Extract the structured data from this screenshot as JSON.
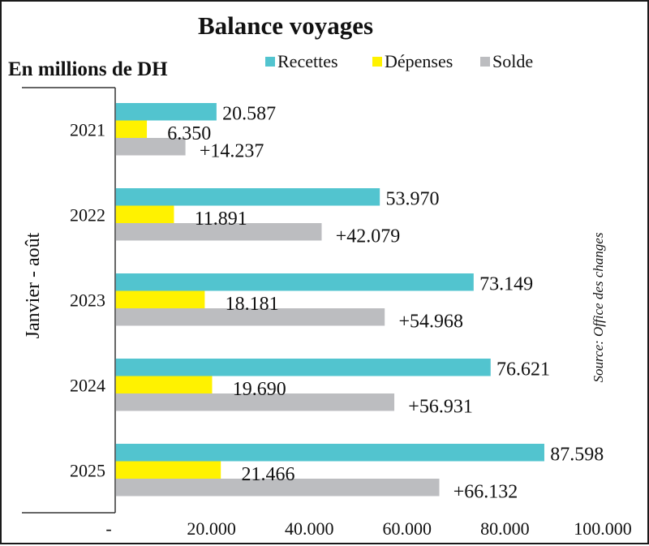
{
  "chart_data": {
    "type": "bar",
    "orientation": "horizontal",
    "title": "Balance voyages",
    "subtitle": "En millions de DH",
    "ylabel": "Janvier - août",
    "xlabel": "",
    "source": "Source: Office des changes",
    "categories": [
      "2021",
      "2022",
      "2023",
      "2024",
      "2025"
    ],
    "series": [
      {
        "name": "Recettes",
        "color": "#52C4CF",
        "values": [
          20587,
          53970,
          73149,
          76621,
          87598
        ],
        "labels": [
          "20.587",
          "53.970",
          "73.149",
          "76.621",
          "87.598"
        ]
      },
      {
        "name": "Dépenses",
        "color": "#FFF200",
        "values": [
          6350,
          11891,
          18181,
          19690,
          21466
        ],
        "labels": [
          "6.350",
          "11.891",
          "18.181",
          "19.690",
          "21.466"
        ]
      },
      {
        "name": "Solde",
        "color": "#BCBDC0",
        "values": [
          14237,
          42079,
          54968,
          56931,
          66132
        ],
        "labels": [
          "+14.237",
          "+42.079",
          "+54.968",
          "+56.931",
          "+66.132"
        ]
      }
    ],
    "xlim": [
      0,
      100000
    ],
    "xticks": [
      0,
      20000,
      40000,
      60000,
      80000,
      100000
    ],
    "xtick_labels": [
      "-",
      "20.000",
      "40.000",
      "60.000",
      "80.000",
      "100.000"
    ],
    "grid": false,
    "legend": {
      "position": "top-center"
    }
  }
}
